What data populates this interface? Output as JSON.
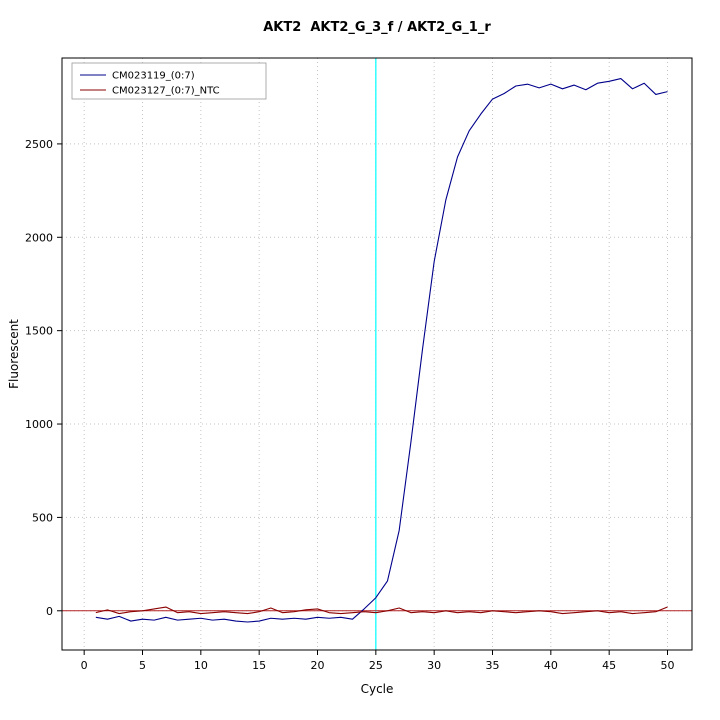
{
  "title": "AKT2  AKT2_G_3_f / AKT2_G_1_r",
  "chart_data": {
    "type": "line",
    "title": "AKT2  AKT2_G_3_f / AKT2_G_1_r",
    "xlabel": "Cycle",
    "ylabel": "Fluorescent",
    "xlim": [
      -1.9,
      52.1
    ],
    "ylim": [
      -210,
      2960
    ],
    "xticks": [
      0,
      5,
      10,
      15,
      20,
      25,
      30,
      35,
      40,
      45,
      50
    ],
    "yticks": [
      0,
      500,
      1000,
      1500,
      2000,
      2500
    ],
    "grid": "dotted",
    "legend_position": "top-left",
    "vline": {
      "x": 25,
      "color": "#00FFFF",
      "label": "cycle-25-marker"
    },
    "threshold_line": {
      "y": 0,
      "color": "#B22222"
    },
    "x": [
      1,
      2,
      3,
      4,
      5,
      6,
      7,
      8,
      9,
      10,
      11,
      12,
      13,
      14,
      15,
      16,
      17,
      18,
      19,
      20,
      21,
      22,
      23,
      24,
      25,
      26,
      27,
      28,
      29,
      30,
      31,
      32,
      33,
      34,
      35,
      36,
      37,
      38,
      39,
      40,
      41,
      42,
      43,
      44,
      45,
      46,
      47,
      48,
      49,
      50
    ],
    "series": [
      {
        "name": "CM023119_(0:7)",
        "color": "#00008B",
        "values": [
          -35,
          -45,
          -30,
          -55,
          -45,
          -50,
          -35,
          -50,
          -45,
          -40,
          -50,
          -45,
          -55,
          -60,
          -55,
          -40,
          -45,
          -40,
          -45,
          -35,
          -40,
          -35,
          -45,
          10,
          70,
          160,
          430,
          900,
          1400,
          1870,
          2200,
          2430,
          2570,
          2660,
          2740,
          2770,
          2810,
          2820,
          2800,
          2820,
          2795,
          2815,
          2790,
          2825,
          2835,
          2850,
          2795,
          2825,
          2765,
          2780
        ]
      },
      {
        "name": "CM023127_(0:7)_NTC",
        "color": "#8B0000",
        "values": [
          -10,
          5,
          -15,
          -5,
          0,
          10,
          20,
          -10,
          -5,
          -15,
          -10,
          -5,
          -10,
          -15,
          -5,
          15,
          -10,
          -5,
          5,
          10,
          -10,
          -15,
          -10,
          -5,
          -10,
          0,
          15,
          -10,
          -5,
          -10,
          0,
          -10,
          -5,
          -10,
          0,
          -5,
          -10,
          -5,
          0,
          -5,
          -15,
          -10,
          -5,
          0,
          -10,
          -5,
          -15,
          -10,
          -5,
          20
        ]
      }
    ]
  }
}
